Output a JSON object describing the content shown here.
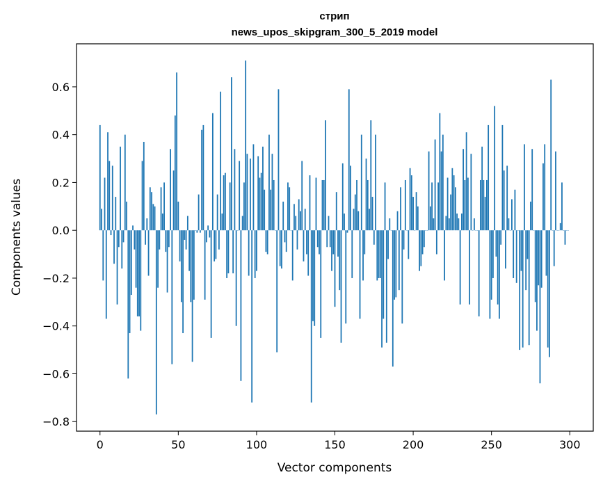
{
  "chart_data": {
    "type": "bar",
    "title_line1": "стрип",
    "title_line2": "news_upos_skipgram_300_5_2019 model",
    "xlabel": "Vector components",
    "ylabel": "Components values",
    "xlim": [
      -15,
      315
    ],
    "ylim": [
      -0.84,
      0.78
    ],
    "xticks": [
      0,
      50,
      100,
      150,
      200,
      250,
      300
    ],
    "xtick_labels": [
      "0",
      "50",
      "100",
      "150",
      "200",
      "250",
      "300"
    ],
    "yticks": [
      -0.8,
      -0.6,
      -0.4,
      -0.2,
      0.0,
      0.2,
      0.4,
      0.6
    ],
    "ytick_labels": [
      "−0.8",
      "−0.6",
      "−0.4",
      "−0.2",
      "0.0",
      "0.2",
      "0.4",
      "0.6"
    ],
    "bar_color": "#1f77b4",
    "values": [
      0.44,
      0.09,
      -0.21,
      0.22,
      -0.37,
      0.41,
      0.29,
      -0.02,
      0.27,
      -0.14,
      0.14,
      -0.31,
      -0.07,
      0.35,
      -0.16,
      -0.05,
      0.4,
      0.12,
      -0.62,
      -0.43,
      -0.27,
      0.02,
      -0.08,
      -0.24,
      -0.36,
      -0.36,
      -0.42,
      0.29,
      0.37,
      -0.06,
      0.05,
      -0.19,
      0.18,
      0.16,
      0.11,
      0.1,
      -0.77,
      -0.24,
      -0.08,
      0.18,
      0.07,
      0.2,
      -0.09,
      -0.26,
      -0.07,
      0.34,
      -0.56,
      0.25,
      0.48,
      0.66,
      0.12,
      -0.13,
      -0.3,
      -0.43,
      -0.04,
      -0.08,
      0.06,
      -0.17,
      -0.3,
      -0.55,
      -0.29,
      0.0,
      -0.01,
      0.15,
      -0.01,
      0.42,
      0.44,
      -0.29,
      -0.05,
      0.02,
      -0.03,
      -0.45,
      0.49,
      -0.13,
      -0.12,
      0.15,
      -0.08,
      0.58,
      0.07,
      0.23,
      0.24,
      -0.2,
      -0.18,
      0.2,
      0.64,
      -0.18,
      0.34,
      -0.4,
      0.0,
      0.29,
      -0.63,
      0.06,
      0.2,
      0.71,
      0.32,
      -0.19,
      0.3,
      -0.72,
      0.36,
      -0.2,
      -0.17,
      0.31,
      0.22,
      0.24,
      0.35,
      0.17,
      -0.09,
      -0.1,
      0.4,
      0.17,
      0.32,
      0.21,
      0.0,
      -0.51,
      0.59,
      -0.15,
      -0.16,
      0.12,
      -0.05,
      -0.09,
      0.2,
      0.18,
      0.0,
      -0.21,
      0.11,
      0.06,
      -0.08,
      0.13,
      0.08,
      0.29,
      -0.13,
      0.09,
      -0.1,
      -0.19,
      0.23,
      -0.72,
      -0.38,
      -0.4,
      0.22,
      -0.07,
      -0.1,
      -0.45,
      0.21,
      0.21,
      0.46,
      -0.07,
      0.06,
      -0.07,
      -0.17,
      -0.1,
      -0.32,
      0.16,
      -0.11,
      -0.25,
      -0.47,
      0.28,
      0.07,
      -0.39,
      -0.01,
      0.59,
      0.27,
      -0.2,
      0.09,
      0.15,
      0.21,
      0.08,
      -0.37,
      0.4,
      -0.21,
      -0.1,
      0.3,
      0.21,
      0.09,
      0.46,
      0.14,
      -0.06,
      0.4,
      -0.21,
      -0.2,
      -0.2,
      -0.49,
      -0.37,
      0.2,
      -0.47,
      -0.12,
      0.05,
      0.0,
      -0.57,
      -0.29,
      -0.28,
      0.08,
      -0.25,
      0.18,
      -0.39,
      -0.08,
      0.21,
      0.0,
      -0.12,
      0.26,
      0.23,
      0.14,
      0.0,
      0.16,
      0.1,
      -0.17,
      -0.15,
      -0.1,
      -0.07,
      0.0,
      0.0,
      0.33,
      0.1,
      0.2,
      0.05,
      0.38,
      -0.1,
      0.2,
      0.49,
      0.33,
      0.4,
      -0.21,
      0.06,
      0.22,
      0.05,
      0.15,
      0.26,
      0.23,
      0.18,
      0.07,
      0.05,
      -0.31,
      0.07,
      0.34,
      0.21,
      0.41,
      0.22,
      -0.31,
      0.32,
      0.0,
      0.05,
      0.0,
      0.0,
      -0.36,
      0.21,
      0.35,
      0.21,
      0.14,
      0.21,
      0.44,
      -0.37,
      -0.29,
      -0.2,
      0.52,
      -0.11,
      -0.31,
      -0.37,
      -0.06,
      0.44,
      0.25,
      -0.16,
      0.27,
      0.05,
      0.0,
      0.13,
      -0.2,
      0.17,
      -0.22,
      0.0,
      -0.5,
      -0.17,
      -0.49,
      0.36,
      -0.25,
      -0.12,
      -0.48,
      0.12,
      0.34,
      0.0,
      -0.3,
      -0.42,
      -0.23,
      -0.64,
      -0.24,
      0.28,
      0.36,
      -0.19,
      -0.49,
      -0.53,
      0.63,
      0.0,
      -0.15,
      0.33,
      0.0,
      0.0,
      0.03,
      0.2,
      0.0,
      -0.06,
      0.0,
      0.0
    ]
  }
}
